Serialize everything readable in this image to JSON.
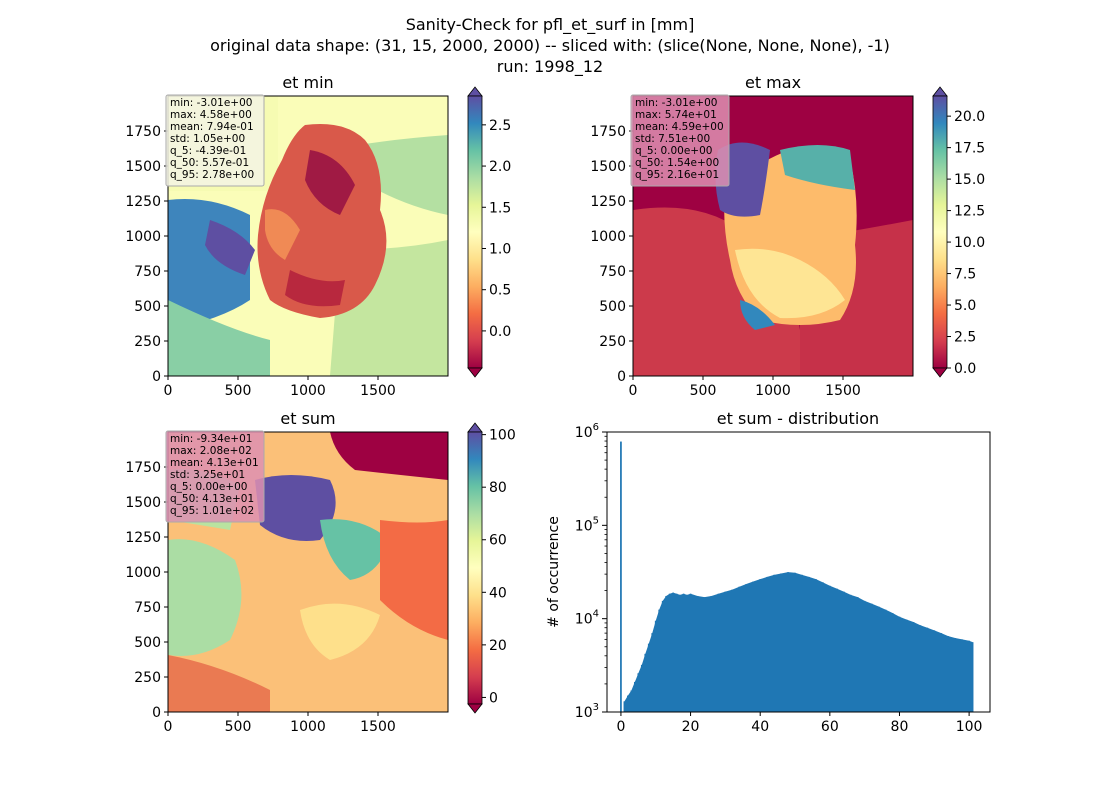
{
  "figure": {
    "title_lines": [
      "Sanity-Check for pfl_et_surf in [mm]",
      "original data shape: (31, 15, 2000, 2000) -- sliced with: (slice(None, None, None), -1)",
      "run: 1998_12"
    ]
  },
  "colormap": "Spectral",
  "chart_data": [
    {
      "type": "heatmap",
      "title": "et min",
      "xlim": [
        0,
        2000
      ],
      "ylim": [
        0,
        2000
      ],
      "xticks": [
        "0",
        "500",
        "1000",
        "1500"
      ],
      "yticks": [
        "0",
        "250",
        "500",
        "750",
        "1000",
        "1250",
        "1500",
        "1750"
      ],
      "colorbar": {
        "vmin": -0.45,
        "vmax": 2.85,
        "extend": "both",
        "ticks": [
          "0.0",
          "0.5",
          "1.0",
          "1.5",
          "2.0",
          "2.5"
        ]
      },
      "stats": [
        "min: -3.01e+00",
        "max: 4.58e+00",
        "mean: 7.94e-01",
        "std: 1.05e+00",
        "q_5: -4.39e-01",
        "q_50: 5.57e-01",
        "q_95: 2.78e+00"
      ]
    },
    {
      "type": "heatmap",
      "title": "et max",
      "xlim": [
        0,
        2000
      ],
      "ylim": [
        0,
        2000
      ],
      "xticks": [
        "0",
        "500",
        "1000",
        "1500"
      ],
      "yticks": [
        "0",
        "250",
        "500",
        "750",
        "1000",
        "1250",
        "1500",
        "1750"
      ],
      "colorbar": {
        "vmin": 0,
        "vmax": 21.6,
        "extend": "both",
        "ticks": [
          "0.0",
          "2.5",
          "5.0",
          "7.5",
          "10.0",
          "12.5",
          "15.0",
          "17.5",
          "20.0"
        ]
      },
      "stats": [
        "min: -3.01e+00",
        "max: 5.74e+01",
        "mean: 4.59e+00",
        "std: 7.51e+00",
        "q_5: 0.00e+00",
        "q_50: 1.54e+00",
        "q_95: 2.16e+01"
      ]
    },
    {
      "type": "heatmap",
      "title": "et sum",
      "xlim": [
        0,
        2000
      ],
      "ylim": [
        0,
        2000
      ],
      "xticks": [
        "0",
        "500",
        "1000",
        "1500"
      ],
      "yticks": [
        "0",
        "250",
        "500",
        "750",
        "1000",
        "1250",
        "1500",
        "1750"
      ],
      "colorbar": {
        "vmin": -2.5,
        "vmax": 101,
        "extend": "both",
        "ticks": [
          "0",
          "20",
          "40",
          "60",
          "80",
          "100"
        ]
      },
      "stats": [
        "min: -9.34e+01",
        "max: 2.08e+02",
        "mean: 4.13e+01",
        "std: 3.25e+01",
        "q_5: 0.00e+00",
        "q_50: 4.13e+01",
        "q_95: 1.01e+02"
      ]
    },
    {
      "type": "bar",
      "title": "et sum - distribution",
      "ylabel": "# of occurrence",
      "yscale": "log",
      "xlim": [
        -4,
        106
      ],
      "ylim": [
        1000,
        1000000
      ],
      "xticks": [
        0,
        20,
        40,
        60,
        80,
        100
      ],
      "yticks": [
        "10^3",
        "10^4",
        "10^5",
        "10^6"
      ],
      "color": "#1f77b4",
      "bin_width": 0.5,
      "series": [
        {
          "x": [
            0,
            1,
            2,
            3,
            4,
            5,
            6,
            7,
            8,
            9,
            10,
            11,
            12,
            13,
            14,
            15,
            16,
            17,
            18,
            19,
            20,
            22,
            24,
            26,
            28,
            30,
            32,
            34,
            36,
            38,
            40,
            42,
            44,
            46,
            48,
            50,
            52,
            54,
            56,
            58,
            60,
            62,
            64,
            66,
            68,
            70,
            72,
            74,
            76,
            78,
            80,
            82,
            84,
            86,
            88,
            90,
            92,
            94,
            96,
            98,
            100,
            101
          ],
          "y": [
            790000,
            1300,
            1500,
            1700,
            2100,
            2600,
            3200,
            4200,
            5400,
            7000,
            9500,
            12500,
            15500,
            17500,
            18500,
            19000,
            18500,
            18000,
            18500,
            18000,
            18500,
            17500,
            17000,
            17500,
            18500,
            19500,
            20500,
            22000,
            23500,
            25000,
            26500,
            28000,
            29500,
            30500,
            31500,
            31000,
            29500,
            28000,
            26500,
            24500,
            22500,
            21000,
            19500,
            18000,
            17000,
            15500,
            14500,
            13500,
            12500,
            11500,
            10500,
            9800,
            9200,
            8500,
            8000,
            7500,
            7000,
            6500,
            6200,
            6000,
            5800,
            5600
          ]
        }
      ]
    }
  ]
}
